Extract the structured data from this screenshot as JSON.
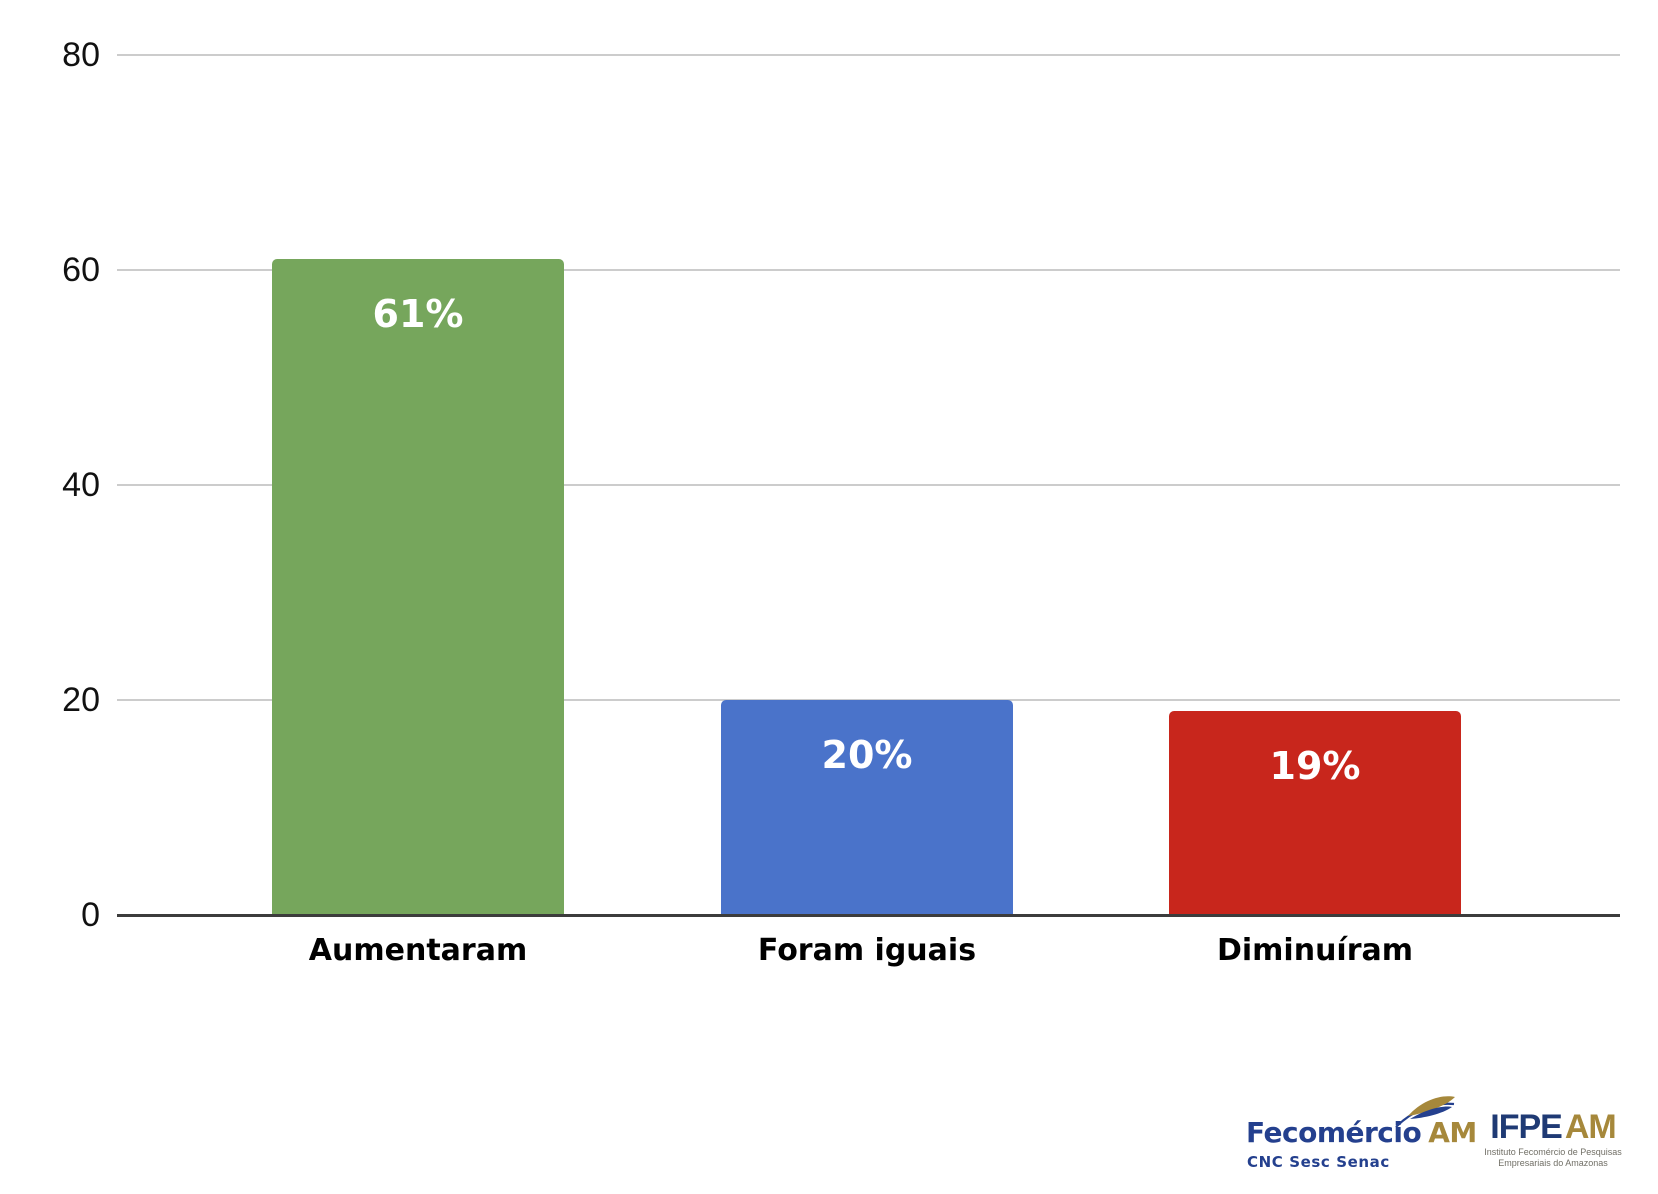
{
  "chart_data": {
    "type": "bar",
    "categories": [
      "Aumentaram",
      "Foram iguais",
      "Diminuíram"
    ],
    "values": [
      61,
      20,
      19
    ],
    "value_labels": [
      "61%",
      "20%",
      "19%"
    ],
    "bar_colors": [
      "#76a65c",
      "#4a73ca",
      "#c8261c"
    ],
    "title": "",
    "xlabel": "",
    "ylabel": "",
    "ylim": [
      0,
      80
    ],
    "yticks": [
      80,
      60,
      40,
      20,
      0
    ],
    "grid": true,
    "legend": false
  },
  "colors": {
    "background": "#ffffff",
    "gridline": "#cccccc",
    "axis": "#3c3c3c",
    "tick_label": "#111111",
    "category_label": "#000000",
    "value_label": "#ffffff"
  },
  "branding": {
    "fecomercio": {
      "name": "Fecomércio",
      "region": "AM",
      "tagline": "CNC Sesc Senac",
      "navy": "#24408e",
      "gold": "#a6883b"
    },
    "ifpe": {
      "name": "IFPE",
      "region": "AM",
      "subtitle_line1": "Instituto Fecomércio de Pesquisas",
      "subtitle_line2": "Empresariais do Amazonas",
      "navy": "#1f3a74",
      "gold": "#a6883b",
      "subtitle_color": "#716f66"
    }
  }
}
